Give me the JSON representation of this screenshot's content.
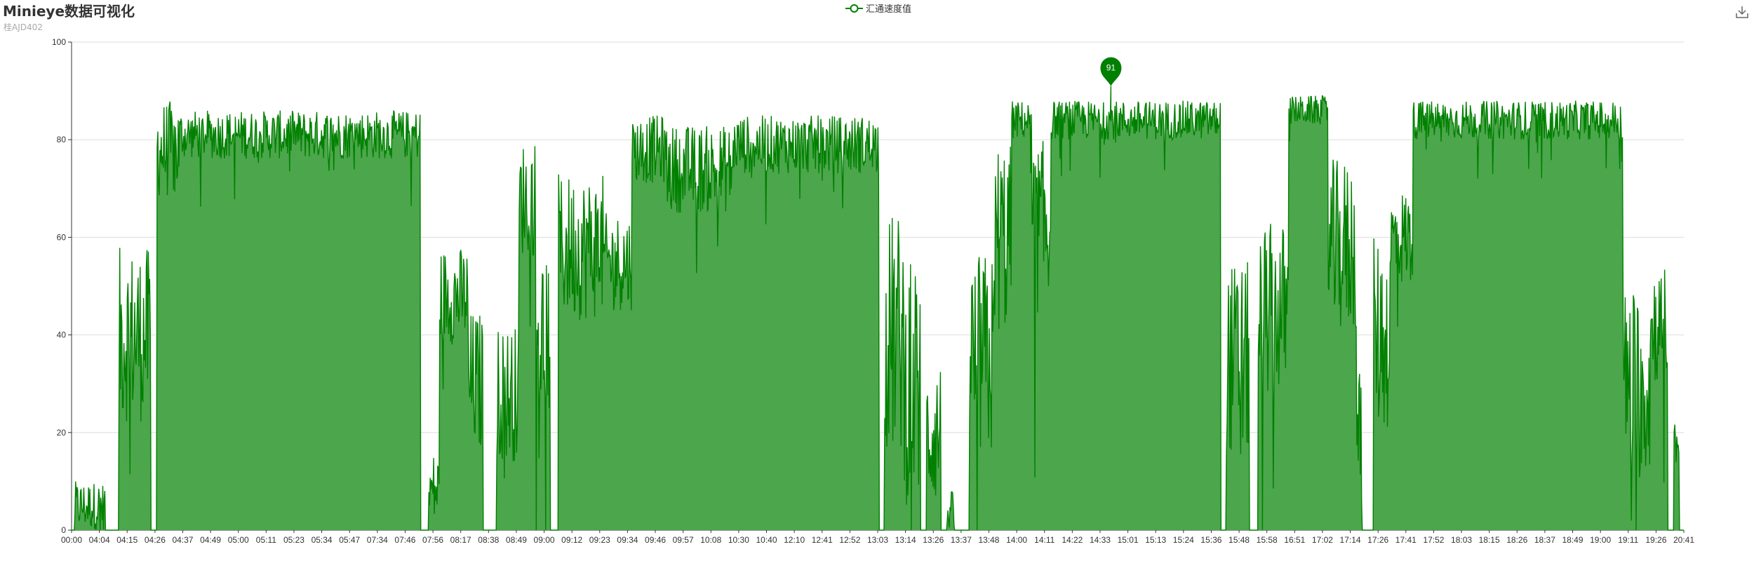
{
  "toolbox": {
    "save_icon": "download-icon"
  },
  "colors": {
    "series": "#008000",
    "area": "#4ca64c",
    "grid": "#dddddd",
    "axis": "#333333"
  },
  "chart_data": {
    "type": "area",
    "title": "Minieye数据可视化",
    "subtitle": "桂AJD402",
    "legend": {
      "position": "top-center",
      "entries": [
        "汇通速度值"
      ]
    },
    "grid": true,
    "ylim": [
      0,
      100
    ],
    "yticks": [
      0,
      20,
      40,
      60,
      80,
      100
    ],
    "xticks": [
      "00:00",
      "04:04",
      "04:15",
      "04:26",
      "04:37",
      "04:49",
      "05:00",
      "05:11",
      "05:23",
      "05:34",
      "05:47",
      "07:34",
      "07:46",
      "07:56",
      "08:17",
      "08:38",
      "08:49",
      "09:00",
      "09:12",
      "09:23",
      "09:34",
      "09:46",
      "09:57",
      "10:08",
      "10:30",
      "10:40",
      "12:10",
      "12:41",
      "12:52",
      "13:03",
      "13:14",
      "13:26",
      "13:37",
      "13:48",
      "14:00",
      "14:11",
      "14:22",
      "14:33",
      "15:01",
      "15:13",
      "15:24",
      "15:36",
      "15:48",
      "15:58",
      "16:51",
      "17:02",
      "17:14",
      "17:26",
      "17:41",
      "17:52",
      "18:03",
      "18:15",
      "18:26",
      "18:37",
      "18:49",
      "19:00",
      "19:11",
      "19:26",
      "20:41"
    ],
    "series": [
      {
        "name": "汇通速度值",
        "segments": [
          {
            "start": 0.3,
            "end": 3.0,
            "level": 5,
            "var": 5
          },
          {
            "start": 4.2,
            "end": 7.0,
            "level": 40,
            "var": 18
          },
          {
            "start": 7.5,
            "end": 9.5,
            "level": 78,
            "var": 10
          },
          {
            "start": 9.5,
            "end": 30.8,
            "level": 81,
            "var": 5
          },
          {
            "start": 31.5,
            "end": 32.5,
            "level": 8,
            "var": 8
          },
          {
            "start": 32.5,
            "end": 35.0,
            "level": 48,
            "var": 10
          },
          {
            "start": 35.0,
            "end": 36.3,
            "level": 30,
            "var": 15
          },
          {
            "start": 37.5,
            "end": 39.5,
            "level": 28,
            "var": 14
          },
          {
            "start": 39.5,
            "end": 41.0,
            "level": 68,
            "var": 12
          },
          {
            "start": 41.0,
            "end": 42.3,
            "level": 40,
            "var": 18
          },
          {
            "start": 43.0,
            "end": 47.0,
            "level": 58,
            "var": 15
          },
          {
            "start": 47.0,
            "end": 49.5,
            "level": 55,
            "var": 10
          },
          {
            "start": 49.5,
            "end": 52.5,
            "level": 78,
            "var": 7
          },
          {
            "start": 52.5,
            "end": 58.5,
            "level": 74,
            "var": 9
          },
          {
            "start": 58.5,
            "end": 71.3,
            "level": 79,
            "var": 6
          },
          {
            "start": 71.8,
            "end": 73.5,
            "level": 40,
            "var": 25
          },
          {
            "start": 73.5,
            "end": 75.0,
            "level": 30,
            "var": 25
          },
          {
            "start": 75.5,
            "end": 76.8,
            "level": 20,
            "var": 15
          },
          {
            "start": 77.3,
            "end": 78.0,
            "level": 4,
            "var": 4
          },
          {
            "start": 79.3,
            "end": 81.5,
            "level": 35,
            "var": 22
          },
          {
            "start": 81.5,
            "end": 83.0,
            "level": 60,
            "var": 20
          },
          {
            "start": 83.0,
            "end": 84.8,
            "level": 84,
            "var": 4
          },
          {
            "start": 84.8,
            "end": 86.5,
            "level": 62,
            "var": 18
          },
          {
            "start": 86.5,
            "end": 101.5,
            "level": 84,
            "var": 4
          },
          {
            "start": 102.0,
            "end": 104.0,
            "level": 35,
            "var": 20
          },
          {
            "start": 104.8,
            "end": 107.5,
            "level": 45,
            "var": 18
          },
          {
            "start": 107.5,
            "end": 111.0,
            "level": 86,
            "var": 3
          },
          {
            "start": 111.0,
            "end": 113.5,
            "level": 58,
            "var": 18
          },
          {
            "start": 113.5,
            "end": 114.0,
            "level": 20,
            "var": 15
          },
          {
            "start": 115.0,
            "end": 116.5,
            "level": 40,
            "var": 20
          },
          {
            "start": 116.5,
            "end": 118.5,
            "level": 60,
            "var": 10
          },
          {
            "start": 118.5,
            "end": 121.0,
            "level": 84,
            "var": 4
          },
          {
            "start": 121.0,
            "end": 137.0,
            "level": 84,
            "var": 4
          },
          {
            "start": 137.0,
            "end": 139.5,
            "level": 30,
            "var": 20
          },
          {
            "start": 139.5,
            "end": 141.0,
            "level": 42,
            "var": 12
          },
          {
            "start": 141.5,
            "end": 142.0,
            "level": 18,
            "var": 5
          }
        ],
        "peak": {
          "x": 91.8,
          "y": 91,
          "label": "91"
        }
      }
    ]
  }
}
